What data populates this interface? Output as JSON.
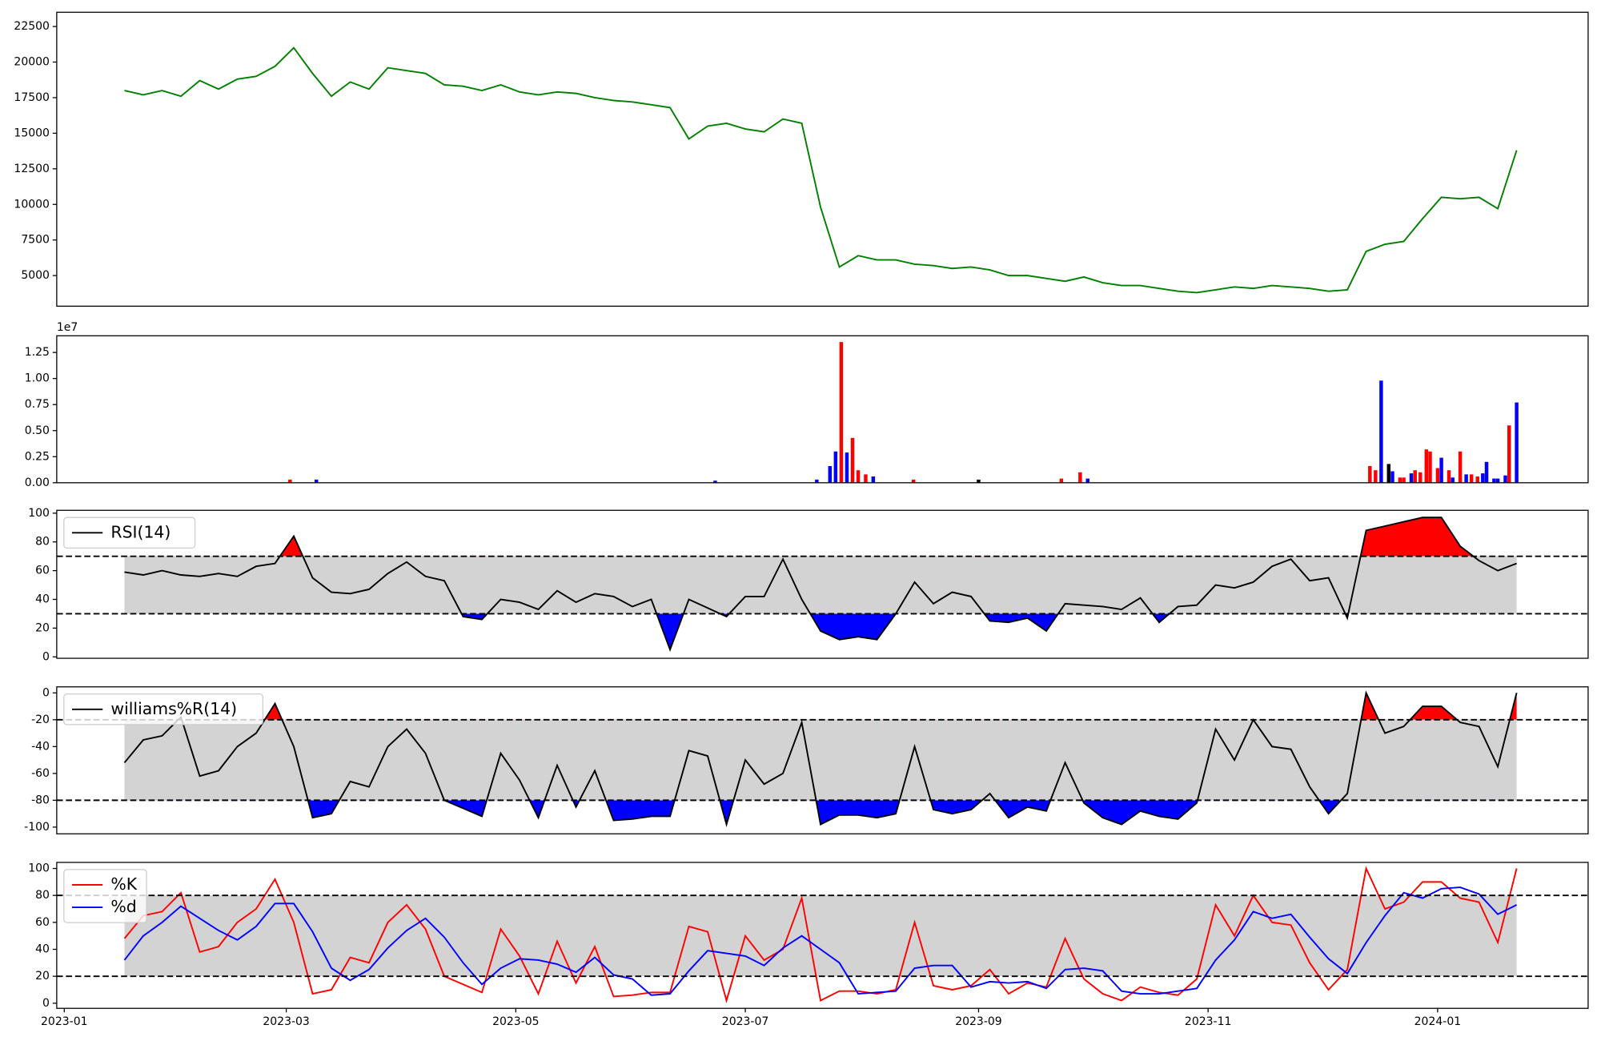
{
  "chart_data": [
    {
      "type": "line",
      "color": "#008000",
      "x": [
        16,
        21,
        26,
        31,
        36,
        41,
        46,
        51,
        56,
        61,
        66,
        71,
        76,
        81,
        86,
        91,
        96,
        101,
        106,
        111,
        116,
        121,
        126,
        131,
        136,
        141,
        146,
        151,
        156,
        161,
        166,
        171,
        176,
        181,
        186,
        191,
        196,
        201,
        206,
        211,
        216,
        221,
        226,
        231,
        236,
        241,
        246,
        251,
        256,
        261,
        266,
        271,
        276,
        281,
        286,
        291,
        296,
        301,
        306,
        311,
        316,
        321,
        326,
        331,
        336,
        341,
        346,
        351,
        356,
        361,
        366,
        371,
        376,
        381,
        386
      ],
      "values": [
        18000,
        17700,
        18000,
        17600,
        18700,
        18100,
        18800,
        19000,
        19700,
        21000,
        19200,
        17600,
        18600,
        18100,
        19600,
        19400,
        19200,
        18400,
        18300,
        18000,
        18400,
        17900,
        17700,
        17900,
        17800,
        17500,
        17300,
        17200,
        17000,
        16800,
        14600,
        15500,
        15700,
        15300,
        15100,
        16000,
        15700,
        9800,
        5600,
        6400,
        6100,
        6100,
        5800,
        5700,
        5500,
        5600,
        5400,
        5000,
        5000,
        4800,
        4600,
        4900,
        4500,
        4300,
        4300,
        4100,
        3900,
        3800,
        4000,
        4200,
        4100,
        4300,
        4200,
        4100,
        3900,
        4000,
        6700,
        7200,
        7400,
        9000,
        10500,
        10400,
        10500,
        9700,
        13800
      ],
      "xlim": [
        -2,
        405
      ],
      "ylim": [
        2850,
        23500
      ],
      "yticks": [
        5000,
        7500,
        10000,
        12500,
        15000,
        17500,
        20000,
        22500
      ]
    },
    {
      "type": "bar",
      "scale_label": "1e7",
      "x": [
        60,
        67,
        173,
        200,
        203.5,
        205,
        206.5,
        208,
        209.5,
        211,
        213,
        215,
        225.7,
        243,
        265,
        270,
        272,
        347,
        348.5,
        350,
        352,
        353,
        355,
        356,
        358,
        359,
        360.4,
        362,
        363,
        365,
        366,
        368,
        369,
        371,
        372.6,
        374,
        375.6,
        377,
        378,
        380,
        381,
        383,
        384,
        386
      ],
      "values": [
        0.03,
        0.03,
        0.02,
        0.03,
        0.16,
        0.3,
        1.35,
        0.29,
        0.43,
        0.12,
        0.08,
        0.06,
        0.03,
        0.03,
        0.04,
        0.1,
        0.04,
        0.16,
        0.12,
        0.98,
        0.18,
        0.11,
        0.05,
        0.05,
        0.09,
        0.12,
        0.1,
        0.32,
        0.3,
        0.14,
        0.24,
        0.12,
        0.05,
        0.3,
        0.08,
        0.08,
        0.06,
        0.09,
        0.2,
        0.04,
        0.04,
        0.07,
        0.55,
        0.77
      ],
      "colors": [
        "red",
        "blue",
        "blue",
        "blue",
        "blue",
        "blue",
        "red",
        "blue",
        "red",
        "red",
        "red",
        "blue",
        "red",
        "black",
        "red",
        "red",
        "blue",
        "red",
        "red",
        "blue",
        "black",
        "blue",
        "red",
        "red",
        "blue",
        "red",
        "red",
        "red",
        "red",
        "red",
        "blue",
        "red",
        "blue",
        "red",
        "blue",
        "red",
        "red",
        "blue",
        "blue",
        "blue",
        "blue",
        "blue",
        "red",
        "blue"
      ],
      "xlim": [
        -2,
        405
      ],
      "ylim": [
        0,
        1.41
      ],
      "yticks": [
        {
          "value": 0,
          "label": "0.00"
        },
        0.25,
        {
          "value": 0.5,
          "label": "0.50"
        },
        0.75,
        {
          "value": 1,
          "label": "1.00"
        },
        1.25
      ]
    },
    {
      "type": "line",
      "legend": "upper left",
      "hlines": [
        70,
        30
      ],
      "band_color": "#d3d3d3",
      "upper_fill": "red",
      "lower_fill": "blue",
      "x": [
        16,
        21,
        26,
        31,
        36,
        41,
        46,
        51,
        56,
        61,
        66,
        71,
        76,
        81,
        86,
        91,
        96,
        101,
        106,
        111,
        116,
        121,
        126,
        131,
        136,
        141,
        146,
        151,
        156,
        161,
        166,
        171,
        176,
        181,
        186,
        191,
        196,
        201,
        206,
        211,
        216,
        221,
        226,
        231,
        236,
        241,
        246,
        251,
        256,
        261,
        266,
        271,
        276,
        281,
        286,
        291,
        296,
        301,
        306,
        311,
        316,
        321,
        326,
        331,
        336,
        341,
        346,
        351,
        356,
        361,
        366,
        371,
        376,
        381,
        386
      ],
      "series": [
        {
          "name": "RSI(14)",
          "color": "black",
          "values": [
            59,
            57,
            60,
            57,
            56,
            58,
            56,
            63,
            65,
            84,
            55,
            45,
            44,
            47,
            58,
            66,
            56,
            53,
            28,
            26,
            40,
            38,
            33,
            46,
            38,
            44,
            42,
            35,
            40,
            5,
            40,
            34,
            28,
            42,
            42,
            68,
            40,
            18,
            12,
            14,
            12,
            30,
            52,
            37,
            45,
            42,
            25,
            24,
            27,
            18,
            37,
            36,
            35,
            33,
            41,
            24,
            35,
            36,
            50,
            48,
            52,
            63,
            68,
            53,
            55,
            27,
            88,
            91,
            94,
            97,
            97,
            77,
            67,
            60,
            65
          ]
        }
      ],
      "xlim": [
        -2,
        405
      ],
      "ylim": [
        -1,
        102
      ],
      "yticks": [
        0,
        20,
        40,
        60,
        80,
        100
      ]
    },
    {
      "type": "line",
      "legend": "upper left",
      "hlines": [
        -20,
        -80
      ],
      "band_color": "#d3d3d3",
      "upper_fill": "red",
      "lower_fill": "blue",
      "x": [
        16,
        21,
        26,
        31,
        36,
        41,
        46,
        51,
        56,
        61,
        66,
        71,
        76,
        81,
        86,
        91,
        96,
        101,
        106,
        111,
        116,
        121,
        126,
        131,
        136,
        141,
        146,
        151,
        156,
        161,
        166,
        171,
        176,
        181,
        186,
        191,
        196,
        201,
        206,
        211,
        216,
        221,
        226,
        231,
        236,
        241,
        246,
        251,
        256,
        261,
        266,
        271,
        276,
        281,
        286,
        291,
        296,
        301,
        306,
        311,
        316,
        321,
        326,
        331,
        336,
        341,
        346,
        351,
        356,
        361,
        366,
        371,
        376,
        381,
        386
      ],
      "series": [
        {
          "name": "williams%R(14)",
          "color": "black",
          "values": [
            -52,
            -35,
            -32,
            -18,
            -62,
            -58,
            -40,
            -30,
            -8,
            -40,
            -93,
            -90,
            -66,
            -70,
            -40,
            -27,
            -45,
            -80,
            -86,
            -92,
            -45,
            -65,
            -93,
            -54,
            -85,
            -58,
            -95,
            -94,
            -92,
            -92,
            -43,
            -47,
            -98,
            -50,
            -68,
            -60,
            -22,
            -98,
            -91,
            -91,
            -93,
            -90,
            -40,
            -87,
            -90,
            -87,
            -75,
            -93,
            -85,
            -88,
            -52,
            -82,
            -93,
            -98,
            -88,
            -92,
            -94,
            -82,
            -27,
            -50,
            -20,
            -40,
            -42,
            -70,
            -90,
            -75,
            0,
            -30,
            -25,
            -10,
            -10,
            -22,
            -25,
            -55,
            0
          ]
        }
      ],
      "xlim": [
        -2,
        405
      ],
      "ylim": [
        -105,
        4.5
      ],
      "yticks": [
        -100,
        -80,
        -60,
        -40,
        -20,
        0
      ]
    },
    {
      "type": "line",
      "legend": "upper left",
      "hlines": [
        80,
        20
      ],
      "band_color": "#d3d3d3",
      "x": [
        16,
        21,
        26,
        31,
        36,
        41,
        46,
        51,
        56,
        61,
        66,
        71,
        76,
        81,
        86,
        91,
        96,
        101,
        106,
        111,
        116,
        121,
        126,
        131,
        136,
        141,
        146,
        151,
        156,
        161,
        166,
        171,
        176,
        181,
        186,
        191,
        196,
        201,
        206,
        211,
        216,
        221,
        226,
        231,
        236,
        241,
        246,
        251,
        256,
        261,
        266,
        271,
        276,
        281,
        286,
        291,
        296,
        301,
        306,
        311,
        316,
        321,
        326,
        331,
        336,
        341,
        346,
        351,
        356,
        361,
        366,
        371,
        376,
        381,
        386
      ],
      "series": [
        {
          "name": "%K",
          "color": "red",
          "values": [
            48,
            65,
            68,
            82,
            38,
            42,
            60,
            70,
            92,
            60,
            7,
            10,
            34,
            30,
            60,
            73,
            55,
            20,
            14,
            8,
            55,
            35,
            7,
            46,
            15,
            42,
            5,
            6,
            8,
            8,
            57,
            53,
            2,
            50,
            32,
            40,
            78,
            2,
            9,
            9,
            7,
            10,
            60,
            13,
            10,
            13,
            25,
            7,
            15,
            12,
            48,
            18,
            7,
            2,
            12,
            8,
            6,
            18,
            73,
            50,
            80,
            60,
            58,
            30,
            10,
            25,
            100,
            70,
            75,
            90,
            90,
            78,
            75,
            45,
            100
          ]
        },
        {
          "name": "%d",
          "color": "blue",
          "values": [
            32,
            50,
            60,
            72,
            63,
            54,
            47,
            57,
            74,
            74,
            53,
            26,
            17,
            25,
            41,
            54,
            63,
            49,
            30,
            14,
            26,
            33,
            32,
            29,
            23,
            34,
            21,
            18,
            6,
            7,
            24,
            39,
            37,
            35,
            28,
            41,
            50,
            40,
            30,
            7,
            8,
            9,
            26,
            28,
            28,
            12,
            16,
            15,
            16,
            11,
            25,
            26,
            24,
            9,
            7,
            7,
            9,
            11,
            32,
            47,
            68,
            63,
            66,
            49,
            33,
            22,
            45,
            65,
            82,
            78,
            85,
            86,
            81,
            66,
            73
          ]
        }
      ],
      "xlim": [
        -2,
        405
      ],
      "ylim": [
        -3.8,
        104.5
      ],
      "yticks": [
        0,
        20,
        40,
        60,
        80,
        100
      ],
      "xticks": [
        {
          "value": 0,
          "label": "2023-01"
        },
        {
          "value": 59,
          "label": "2023-03"
        },
        {
          "value": 120,
          "label": "2023-05"
        },
        {
          "value": 181,
          "label": "2023-07"
        },
        {
          "value": 243,
          "label": "2023-09"
        },
        {
          "value": 304,
          "label": "2023-11"
        },
        {
          "value": 365,
          "label": "2024-01"
        }
      ]
    }
  ]
}
